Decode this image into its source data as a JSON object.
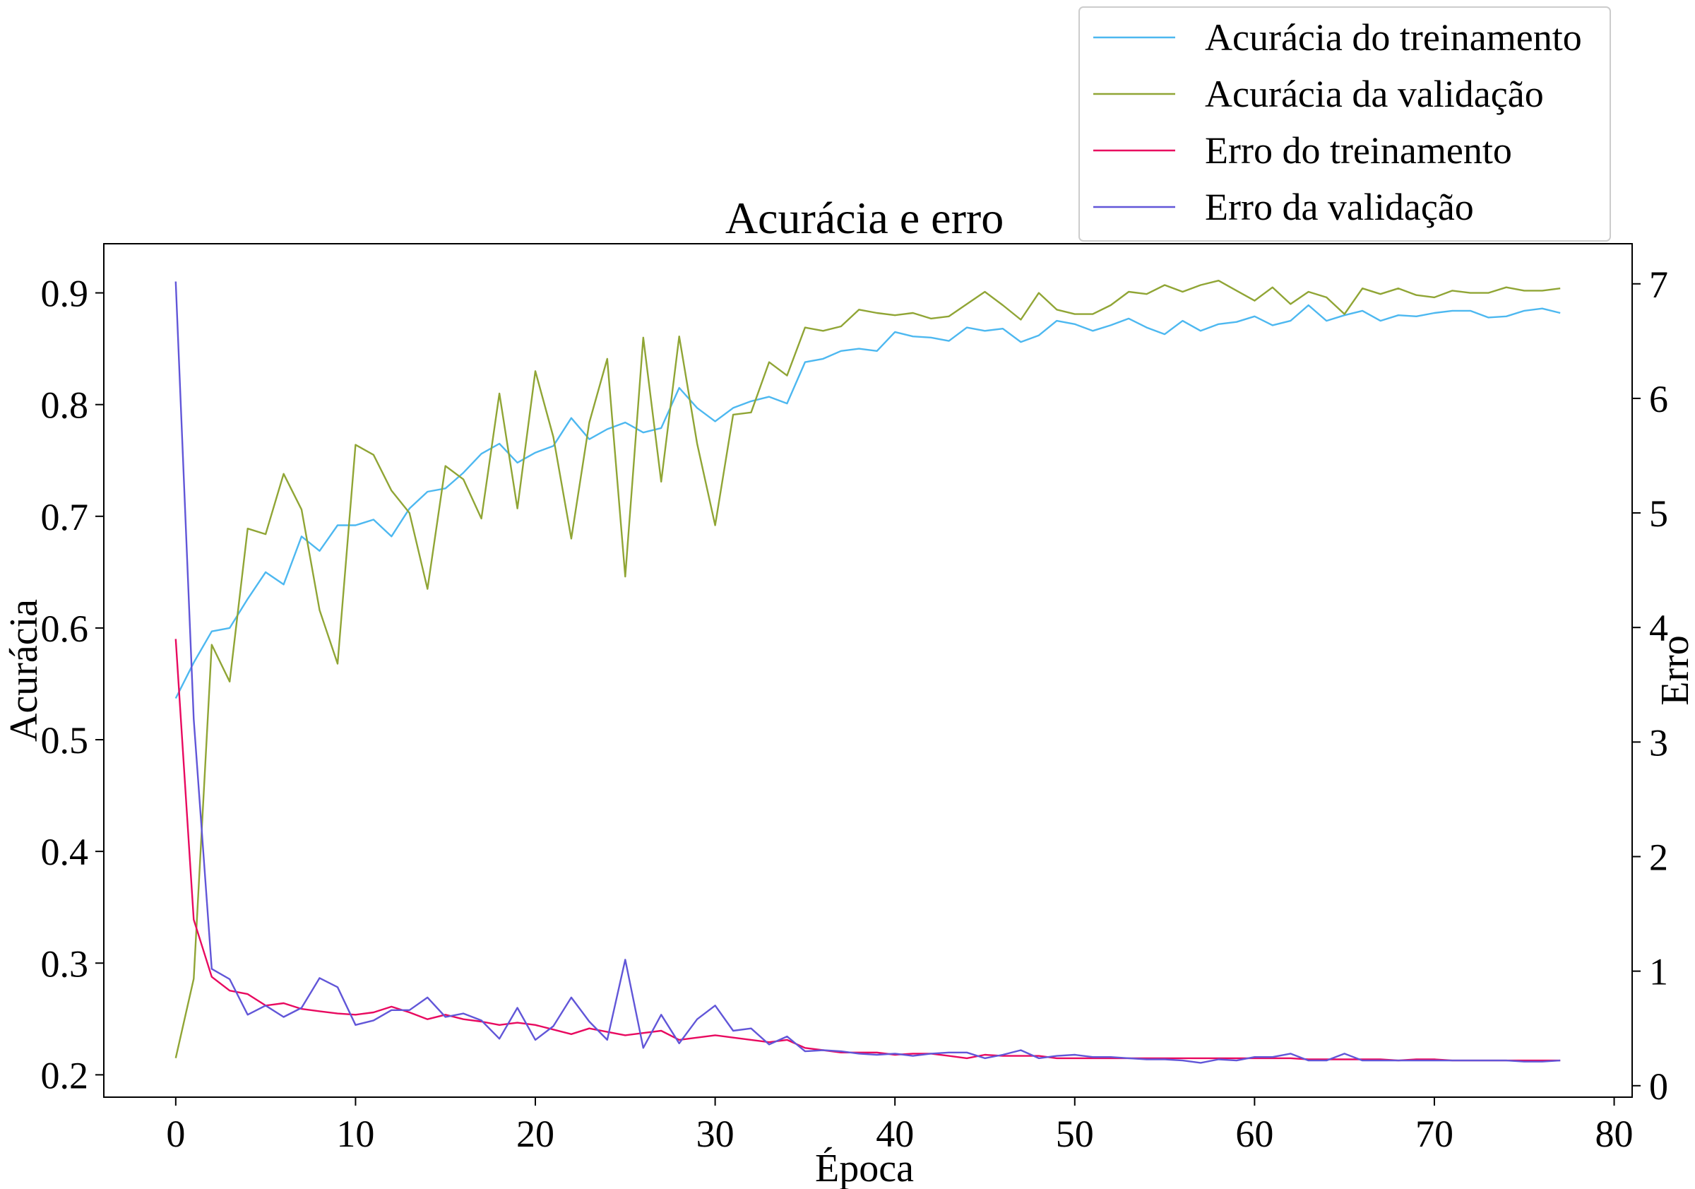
{
  "chart_data": {
    "type": "line",
    "title": "Acurácia e erro",
    "xlabel": "Época",
    "ylabel_left": "Acurácia",
    "ylabel_right": "Erro",
    "xlim": [
      -4,
      81
    ],
    "ylim_left": [
      0.18,
      0.944
    ],
    "ylim_right": [
      -0.1,
      7.35
    ],
    "x_ticks": [
      0,
      10,
      20,
      30,
      40,
      50,
      60,
      70,
      80
    ],
    "y_ticks_left": [
      0.2,
      0.3,
      0.4,
      0.5,
      0.6,
      0.7,
      0.8,
      0.9
    ],
    "y_ticks_right": [
      0,
      1,
      2,
      3,
      4,
      5,
      6,
      7
    ],
    "grid": false,
    "legend_position": "top-right, above plot",
    "series": [
      {
        "name": "Acurácia do treinamento",
        "axis": "left",
        "color": "#4db8f0",
        "values": [
          0.537,
          0.569,
          0.597,
          0.6,
          0.626,
          0.65,
          0.639,
          0.682,
          0.669,
          0.692,
          0.692,
          0.697,
          0.682,
          0.707,
          0.722,
          0.725,
          0.739,
          0.756,
          0.765,
          0.748,
          0.757,
          0.763,
          0.788,
          0.769,
          0.778,
          0.784,
          0.775,
          0.779,
          0.815,
          0.797,
          0.785,
          0.797,
          0.803,
          0.807,
          0.801,
          0.838,
          0.841,
          0.848,
          0.85,
          0.848,
          0.865,
          0.861,
          0.86,
          0.857,
          0.869,
          0.866,
          0.868,
          0.856,
          0.862,
          0.875,
          0.872,
          0.866,
          0.871,
          0.877,
          0.869,
          0.863,
          0.875,
          0.866,
          0.872,
          0.874,
          0.879,
          0.871,
          0.875,
          0.889,
          0.875,
          0.88,
          0.884,
          0.875,
          0.88,
          0.879,
          0.882,
          0.884,
          0.884,
          0.878,
          0.879,
          0.884,
          0.886,
          0.882
        ]
      },
      {
        "name": "Acurácia da validação",
        "axis": "left",
        "color": "#90a535",
        "values": [
          0.215,
          0.286,
          0.585,
          0.552,
          0.689,
          0.684,
          0.738,
          0.706,
          0.616,
          0.568,
          0.764,
          0.755,
          0.723,
          0.703,
          0.635,
          0.745,
          0.733,
          0.698,
          0.81,
          0.707,
          0.83,
          0.771,
          0.68,
          0.784,
          0.841,
          0.646,
          0.86,
          0.731,
          0.861,
          0.765,
          0.692,
          0.791,
          0.793,
          0.838,
          0.826,
          0.869,
          0.866,
          0.87,
          0.885,
          0.882,
          0.88,
          0.882,
          0.877,
          0.879,
          0.89,
          0.901,
          0.889,
          0.876,
          0.9,
          0.885,
          0.881,
          0.881,
          0.889,
          0.901,
          0.899,
          0.907,
          0.901,
          0.907,
          0.911,
          0.902,
          0.893,
          0.905,
          0.89,
          0.901,
          0.896,
          0.881,
          0.904,
          0.899,
          0.904,
          0.898,
          0.896,
          0.902,
          0.9,
          0.9,
          0.905,
          0.902,
          0.902,
          0.904
        ]
      },
      {
        "name": "Erro do treinamento",
        "axis": "right",
        "color": "#e8095f",
        "values": [
          3.9,
          1.45,
          0.95,
          0.83,
          0.8,
          0.7,
          0.72,
          0.67,
          0.65,
          0.63,
          0.62,
          0.64,
          0.69,
          0.64,
          0.58,
          0.62,
          0.58,
          0.56,
          0.53,
          0.55,
          0.53,
          0.49,
          0.45,
          0.5,
          0.47,
          0.44,
          0.46,
          0.48,
          0.4,
          0.42,
          0.44,
          0.42,
          0.4,
          0.38,
          0.4,
          0.33,
          0.31,
          0.29,
          0.29,
          0.29,
          0.27,
          0.28,
          0.28,
          0.26,
          0.24,
          0.27,
          0.26,
          0.26,
          0.26,
          0.24,
          0.24,
          0.24,
          0.24,
          0.24,
          0.24,
          0.24,
          0.24,
          0.24,
          0.24,
          0.24,
          0.24,
          0.24,
          0.24,
          0.23,
          0.23,
          0.23,
          0.23,
          0.23,
          0.22,
          0.23,
          0.23,
          0.22,
          0.22,
          0.22,
          0.22,
          0.22,
          0.22,
          0.22
        ]
      },
      {
        "name": "Erro da validação",
        "axis": "right",
        "color": "#6156d8",
        "values": [
          7.02,
          3.2,
          1.02,
          0.93,
          0.62,
          0.7,
          0.6,
          0.68,
          0.94,
          0.86,
          0.53,
          0.57,
          0.66,
          0.66,
          0.77,
          0.6,
          0.63,
          0.57,
          0.41,
          0.68,
          0.4,
          0.52,
          0.77,
          0.56,
          0.4,
          1.1,
          0.33,
          0.62,
          0.37,
          0.58,
          0.7,
          0.48,
          0.5,
          0.36,
          0.43,
          0.3,
          0.31,
          0.3,
          0.28,
          0.27,
          0.28,
          0.26,
          0.28,
          0.29,
          0.29,
          0.24,
          0.27,
          0.31,
          0.24,
          0.26,
          0.27,
          0.25,
          0.25,
          0.24,
          0.23,
          0.23,
          0.22,
          0.2,
          0.23,
          0.22,
          0.25,
          0.25,
          0.28,
          0.22,
          0.22,
          0.28,
          0.22,
          0.22,
          0.22,
          0.22,
          0.22,
          0.22,
          0.22,
          0.22,
          0.22,
          0.21,
          0.21,
          0.22
        ]
      }
    ]
  }
}
